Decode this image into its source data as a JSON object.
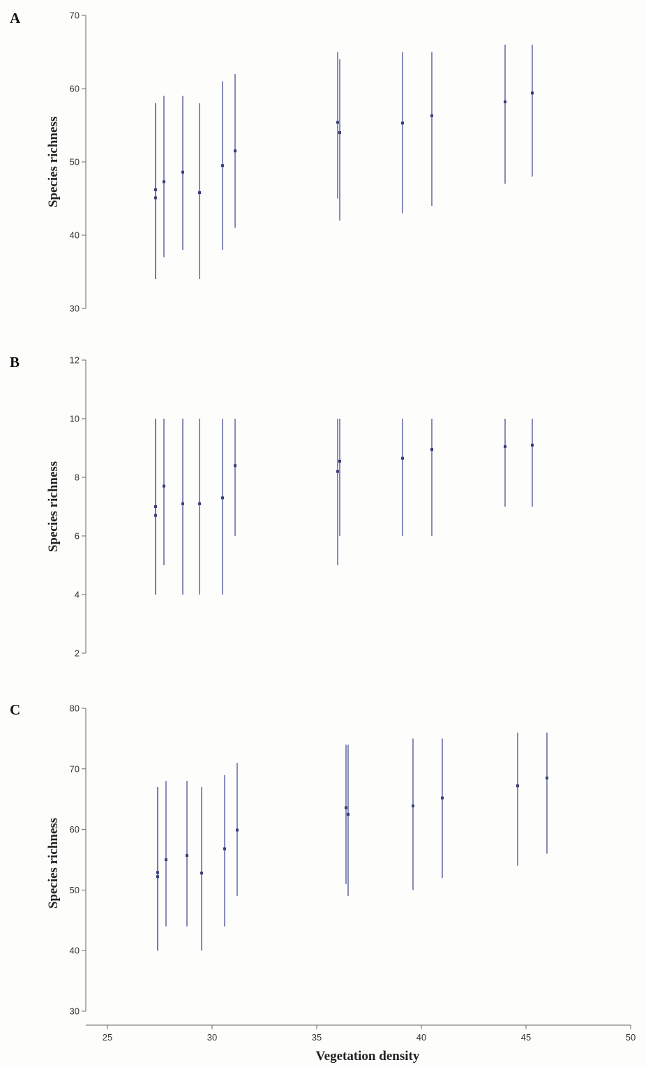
{
  "chart_data": [
    {
      "type": "scatter",
      "panel_label": "A",
      "ylabel": "Species richness",
      "ylim": [
        30,
        70
      ],
      "yticks": [
        30,
        40,
        50,
        60,
        70
      ],
      "show_x_axis": false,
      "points": [
        {
          "x": 27.3,
          "y": 46.2,
          "low": 34,
          "high": 58
        },
        {
          "x": 27.3,
          "y": 45.1,
          "low": 34,
          "high": 58
        },
        {
          "x": 27.7,
          "y": 47.3,
          "low": 37,
          "high": 59
        },
        {
          "x": 28.6,
          "y": 48.6,
          "low": 38,
          "high": 59
        },
        {
          "x": 29.4,
          "y": 45.8,
          "low": 34,
          "high": 58
        },
        {
          "x": 30.5,
          "y": 49.5,
          "low": 38,
          "high": 61
        },
        {
          "x": 31.1,
          "y": 51.5,
          "low": 41,
          "high": 62
        },
        {
          "x": 36.0,
          "y": 55.4,
          "low": 45,
          "high": 65
        },
        {
          "x": 36.1,
          "y": 54.0,
          "low": 42,
          "high": 64
        },
        {
          "x": 39.1,
          "y": 55.3,
          "low": 43,
          "high": 65
        },
        {
          "x": 40.5,
          "y": 56.3,
          "low": 44,
          "high": 65
        },
        {
          "x": 44.0,
          "y": 58.2,
          "low": 47,
          "high": 66
        },
        {
          "x": 45.3,
          "y": 59.4,
          "low": 48,
          "high": 66
        }
      ]
    },
    {
      "type": "scatter",
      "panel_label": "B",
      "ylabel": "Species richness",
      "ylim": [
        2,
        12
      ],
      "yticks": [
        2,
        4,
        6,
        8,
        10,
        12
      ],
      "show_x_axis": false,
      "points": [
        {
          "x": 27.3,
          "y": 7.0,
          "low": 4,
          "high": 10
        },
        {
          "x": 27.3,
          "y": 6.7,
          "low": 4,
          "high": 10
        },
        {
          "x": 27.7,
          "y": 7.7,
          "low": 5,
          "high": 10
        },
        {
          "x": 28.6,
          "y": 7.1,
          "low": 4,
          "high": 10
        },
        {
          "x": 29.4,
          "y": 7.1,
          "low": 4,
          "high": 10
        },
        {
          "x": 30.5,
          "y": 7.3,
          "low": 4,
          "high": 10
        },
        {
          "x": 31.1,
          "y": 8.4,
          "low": 6,
          "high": 10
        },
        {
          "x": 36.0,
          "y": 8.2,
          "low": 5,
          "high": 10
        },
        {
          "x": 36.1,
          "y": 8.55,
          "low": 6,
          "high": 10
        },
        {
          "x": 39.1,
          "y": 8.65,
          "low": 6,
          "high": 10
        },
        {
          "x": 40.5,
          "y": 8.95,
          "low": 6,
          "high": 10
        },
        {
          "x": 44.0,
          "y": 9.05,
          "low": 7,
          "high": 10
        },
        {
          "x": 45.3,
          "y": 9.1,
          "low": 7,
          "high": 10
        }
      ]
    },
    {
      "type": "scatter",
      "panel_label": "C",
      "ylabel": "Species richness",
      "xlabel": "Vegetation density",
      "ylim": [
        30,
        80
      ],
      "yticks": [
        30,
        40,
        50,
        60,
        70,
        80
      ],
      "xlim": [
        25,
        50
      ],
      "xticks": [
        25,
        30,
        35,
        40,
        45,
        50
      ],
      "show_x_axis": true,
      "points": [
        {
          "x": 27.4,
          "y": 52.9,
          "low": 40,
          "high": 67
        },
        {
          "x": 27.4,
          "y": 52.2,
          "low": 40,
          "high": 67
        },
        {
          "x": 27.8,
          "y": 55.0,
          "low": 44,
          "high": 68
        },
        {
          "x": 28.8,
          "y": 55.7,
          "low": 44,
          "high": 68
        },
        {
          "x": 29.5,
          "y": 52.8,
          "low": 40,
          "high": 67
        },
        {
          "x": 30.6,
          "y": 56.8,
          "low": 44,
          "high": 69
        },
        {
          "x": 31.2,
          "y": 59.9,
          "low": 49,
          "high": 71
        },
        {
          "x": 36.4,
          "y": 63.6,
          "low": 51,
          "high": 74
        },
        {
          "x": 36.5,
          "y": 62.5,
          "low": 49,
          "high": 74
        },
        {
          "x": 39.6,
          "y": 63.9,
          "low": 50,
          "high": 75
        },
        {
          "x": 41.0,
          "y": 65.2,
          "low": 52,
          "high": 75
        },
        {
          "x": 44.6,
          "y": 67.2,
          "low": 54,
          "high": 76
        },
        {
          "x": 46.0,
          "y": 68.5,
          "low": 56,
          "high": 76
        }
      ]
    }
  ]
}
